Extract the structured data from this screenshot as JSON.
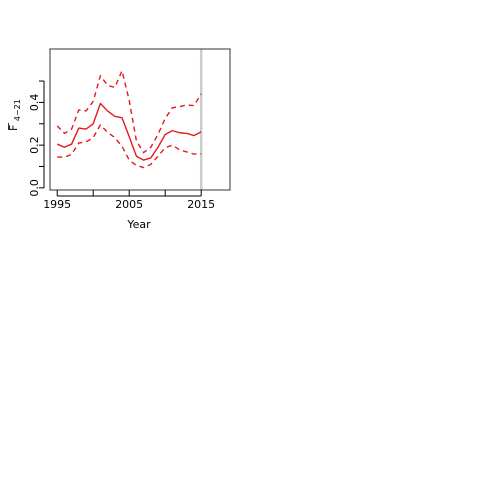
{
  "chart_data": {
    "type": "line",
    "xlabel": "Year",
    "ylabel_main": "F",
    "ylabel_sub": "4−21",
    "xlim": [
      1994,
      2019
    ],
    "ylim": [
      -0.01,
      0.65
    ],
    "x_ticks": [
      1995,
      2000,
      2005,
      2010,
      2015
    ],
    "x_tick_labels": [
      "1995",
      "",
      "2005",
      "",
      "2015"
    ],
    "y_ticks": [
      0.0,
      0.1,
      0.2,
      0.3,
      0.4,
      0.5
    ],
    "y_tick_labels": [
      "0.0",
      "",
      "0.2",
      "",
      "0.4",
      ""
    ],
    "vline_x": 2015,
    "vline_color": "#cccccc",
    "line_color": "#e31a1c",
    "x": [
      1995,
      1996,
      1997,
      1998,
      1999,
      2000,
      2001,
      2002,
      2003,
      2004,
      2005,
      2006,
      2007,
      2008,
      2009,
      2010,
      2011,
      2012,
      2013,
      2014,
      2015
    ],
    "series": [
      {
        "style": "solid",
        "values": [
          0.205,
          0.19,
          0.205,
          0.28,
          0.275,
          0.3,
          0.395,
          0.36,
          0.335,
          0.328,
          0.24,
          0.148,
          0.13,
          0.14,
          0.19,
          0.25,
          0.268,
          0.258,
          0.255,
          0.245,
          0.262
        ]
      },
      {
        "style": "dashed",
        "values": [
          0.29,
          0.255,
          0.275,
          0.365,
          0.36,
          0.405,
          0.525,
          0.48,
          0.47,
          0.548,
          0.41,
          0.22,
          0.165,
          0.19,
          0.25,
          0.325,
          0.375,
          0.38,
          0.388,
          0.385,
          0.44
        ]
      },
      {
        "style": "dashed",
        "values": [
          0.145,
          0.143,
          0.157,
          0.21,
          0.215,
          0.235,
          0.295,
          0.26,
          0.235,
          0.195,
          0.13,
          0.105,
          0.095,
          0.11,
          0.148,
          0.188,
          0.2,
          0.178,
          0.168,
          0.158,
          0.16
        ]
      }
    ]
  }
}
